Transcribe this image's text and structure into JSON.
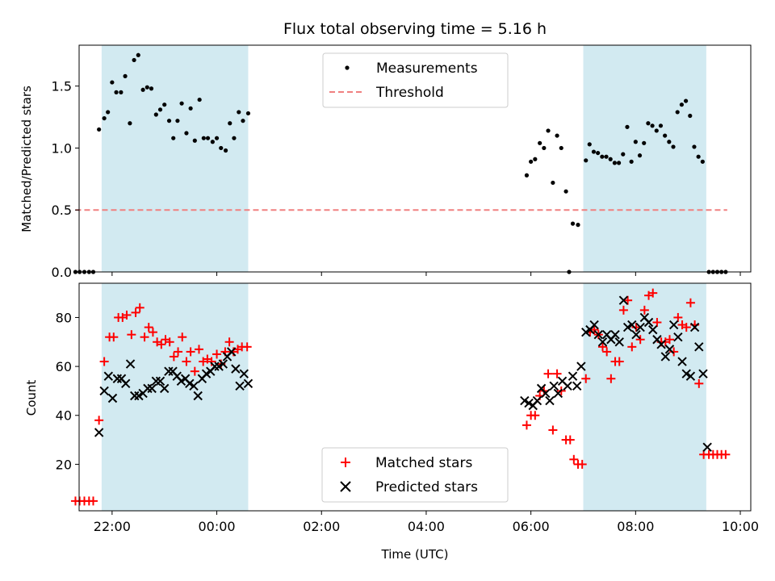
{
  "title": "Flux total observing time = 5.16 h",
  "colors": {
    "shade": "#add8e6",
    "measurement": "#000000",
    "threshold": "#f08080",
    "matched": "#ff0000",
    "predicted": "#000000"
  },
  "chart_data": [
    {
      "type": "scatter",
      "title": "Flux total observing time = 5.16 h",
      "xlabel": "",
      "ylabel": "Matched/Predicted stars",
      "x_unit": "hours relative to 00:00 UTC",
      "xlim": [
        -2.63,
        10.2
      ],
      "ylim": [
        0,
        1.83
      ],
      "yticks": [
        0.0,
        0.5,
        1.0,
        1.5
      ],
      "ytick_labels": [
        "0.0",
        "0.5",
        "1.0",
        "1.5"
      ],
      "shaded_intervals": [
        [
          -2.2,
          0.6
        ],
        [
          7.0,
          9.35
        ]
      ],
      "legend": {
        "placement": "top-center",
        "entries": [
          "Measurements",
          "Threshold"
        ]
      },
      "threshold": {
        "name": "Threshold",
        "y": 0.5,
        "x": [
          -2.7,
          9.75
        ]
      },
      "series": [
        {
          "name": "Measurements",
          "marker": "dot",
          "points": [
            [
              -2.7,
              0.0
            ],
            [
              -2.62,
              0.0
            ],
            [
              -2.53,
              0.0
            ],
            [
              -2.44,
              0.0
            ],
            [
              -2.36,
              0.0
            ],
            [
              -2.25,
              1.15
            ],
            [
              -2.15,
              1.24
            ],
            [
              -2.08,
              1.29
            ],
            [
              -2.0,
              1.53
            ],
            [
              -1.92,
              1.45
            ],
            [
              -1.83,
              1.45
            ],
            [
              -1.75,
              1.58
            ],
            [
              -1.66,
              1.2
            ],
            [
              -1.58,
              1.71
            ],
            [
              -1.5,
              1.75
            ],
            [
              -1.41,
              1.47
            ],
            [
              -1.33,
              1.49
            ],
            [
              -1.25,
              1.48
            ],
            [
              -1.16,
              1.27
            ],
            [
              -1.08,
              1.31
            ],
            [
              -1.0,
              1.35
            ],
            [
              -0.91,
              1.22
            ],
            [
              -0.83,
              1.08
            ],
            [
              -0.75,
              1.22
            ],
            [
              -0.67,
              1.36
            ],
            [
              -0.58,
              1.12
            ],
            [
              -0.5,
              1.32
            ],
            [
              -0.42,
              1.06
            ],
            [
              -0.33,
              1.39
            ],
            [
              -0.25,
              1.08
            ],
            [
              -0.17,
              1.08
            ],
            [
              -0.08,
              1.05
            ],
            [
              0.0,
              1.08
            ],
            [
              0.08,
              1.0
            ],
            [
              0.17,
              0.98
            ],
            [
              0.25,
              1.2
            ],
            [
              0.33,
              1.08
            ],
            [
              0.42,
              1.29
            ],
            [
              0.5,
              1.22
            ],
            [
              0.6,
              1.28
            ],
            [
              5.92,
              0.78
            ],
            [
              6.0,
              0.89
            ],
            [
              6.08,
              0.91
            ],
            [
              6.17,
              1.04
            ],
            [
              6.25,
              1.0
            ],
            [
              6.33,
              1.14
            ],
            [
              6.42,
              0.72
            ],
            [
              6.5,
              1.1
            ],
            [
              6.58,
              1.0
            ],
            [
              6.67,
              0.65
            ],
            [
              6.73,
              0.0
            ],
            [
              6.8,
              0.39
            ],
            [
              6.9,
              0.38
            ],
            [
              7.05,
              0.9
            ],
            [
              7.12,
              1.03
            ],
            [
              7.2,
              0.97
            ],
            [
              7.28,
              0.96
            ],
            [
              7.36,
              0.93
            ],
            [
              7.44,
              0.93
            ],
            [
              7.52,
              0.91
            ],
            [
              7.6,
              0.88
            ],
            [
              7.68,
              0.88
            ],
            [
              7.76,
              0.95
            ],
            [
              7.84,
              1.17
            ],
            [
              7.92,
              0.89
            ],
            [
              8.0,
              1.05
            ],
            [
              8.08,
              0.94
            ],
            [
              8.16,
              1.04
            ],
            [
              8.24,
              1.2
            ],
            [
              8.32,
              1.18
            ],
            [
              8.4,
              1.14
            ],
            [
              8.48,
              1.18
            ],
            [
              8.56,
              1.1
            ],
            [
              8.64,
              1.05
            ],
            [
              8.72,
              1.01
            ],
            [
              8.8,
              1.29
            ],
            [
              8.88,
              1.35
            ],
            [
              8.96,
              1.38
            ],
            [
              9.04,
              1.26
            ],
            [
              9.12,
              1.01
            ],
            [
              9.2,
              0.93
            ],
            [
              9.28,
              0.89
            ],
            [
              9.4,
              0.0
            ],
            [
              9.48,
              0.0
            ],
            [
              9.56,
              0.0
            ],
            [
              9.64,
              0.0
            ],
            [
              9.72,
              0.0
            ]
          ]
        }
      ]
    },
    {
      "type": "scatter",
      "title": "",
      "xlabel": "Time (UTC)",
      "ylabel": "Count",
      "x_unit": "hours relative to 00:00 UTC",
      "xlim": [
        -2.63,
        10.2
      ],
      "ylim": [
        1,
        94
      ],
      "xticks": [
        -2,
        0,
        2,
        4,
        6,
        8,
        10
      ],
      "xtick_labels": [
        "22:00",
        "00:00",
        "02:00",
        "04:00",
        "06:00",
        "08:00",
        "10:00"
      ],
      "yticks": [
        20,
        40,
        60,
        80
      ],
      "ytick_labels": [
        "20",
        "40",
        "60",
        "80"
      ],
      "shaded_intervals": [
        [
          -2.2,
          0.6
        ],
        [
          7.0,
          9.35
        ]
      ],
      "legend": {
        "placement": "bottom-center",
        "entries": [
          "Matched stars",
          "Predicted stars"
        ]
      },
      "series": [
        {
          "name": "Matched stars",
          "marker": "plus",
          "points": [
            [
              -2.7,
              5
            ],
            [
              -2.62,
              5
            ],
            [
              -2.53,
              5
            ],
            [
              -2.44,
              5
            ],
            [
              -2.36,
              5
            ],
            [
              -2.25,
              38
            ],
            [
              -2.15,
              62
            ],
            [
              -2.05,
              72
            ],
            [
              -1.97,
              72
            ],
            [
              -1.88,
              80
            ],
            [
              -1.8,
              80
            ],
            [
              -1.72,
              81
            ],
            [
              -1.63,
              73
            ],
            [
              -1.55,
              82
            ],
            [
              -1.47,
              84
            ],
            [
              -1.38,
              72
            ],
            [
              -1.3,
              76
            ],
            [
              -1.22,
              74
            ],
            [
              -1.14,
              70
            ],
            [
              -1.06,
              69
            ],
            [
              -0.98,
              71
            ],
            [
              -0.9,
              70
            ],
            [
              -0.82,
              64
            ],
            [
              -0.74,
              66
            ],
            [
              -0.66,
              72
            ],
            [
              -0.58,
              62
            ],
            [
              -0.5,
              66
            ],
            [
              -0.42,
              58
            ],
            [
              -0.34,
              67
            ],
            [
              -0.26,
              62
            ],
            [
              -0.18,
              63
            ],
            [
              -0.1,
              62
            ],
            [
              0.0,
              65
            ],
            [
              0.08,
              61
            ],
            [
              0.16,
              66
            ],
            [
              0.24,
              70
            ],
            [
              0.32,
              66
            ],
            [
              0.4,
              67
            ],
            [
              0.48,
              68
            ],
            [
              0.58,
              68
            ],
            [
              5.92,
              36
            ],
            [
              6.0,
              40
            ],
            [
              6.08,
              40
            ],
            [
              6.17,
              48
            ],
            [
              6.25,
              50
            ],
            [
              6.33,
              57
            ],
            [
              6.42,
              34
            ],
            [
              6.5,
              57
            ],
            [
              6.58,
              50
            ],
            [
              6.67,
              30
            ],
            [
              6.75,
              30
            ],
            [
              6.82,
              22
            ],
            [
              6.9,
              20
            ],
            [
              6.98,
              20
            ],
            [
              7.05,
              55
            ],
            [
              7.13,
              74
            ],
            [
              7.21,
              75
            ],
            [
              7.29,
              73
            ],
            [
              7.37,
              68
            ],
            [
              7.45,
              66
            ],
            [
              7.53,
              55
            ],
            [
              7.61,
              62
            ],
            [
              7.69,
              62
            ],
            [
              7.77,
              83
            ],
            [
              7.85,
              87
            ],
            [
              7.93,
              68
            ],
            [
              8.01,
              76
            ],
            [
              8.09,
              71
            ],
            [
              8.17,
              83
            ],
            [
              8.25,
              89
            ],
            [
              8.33,
              90
            ],
            [
              8.41,
              78
            ],
            [
              8.49,
              70
            ],
            [
              8.57,
              70
            ],
            [
              8.65,
              71
            ],
            [
              8.73,
              66
            ],
            [
              8.81,
              80
            ],
            [
              8.89,
              77
            ],
            [
              8.97,
              76
            ],
            [
              9.05,
              86
            ],
            [
              9.13,
              77
            ],
            [
              9.21,
              53
            ],
            [
              9.3,
              24
            ],
            [
              9.4,
              24
            ],
            [
              9.48,
              24
            ],
            [
              9.56,
              24
            ],
            [
              9.64,
              24
            ],
            [
              9.72,
              24
            ]
          ]
        },
        {
          "name": "Predicted stars",
          "marker": "cross",
          "points": [
            [
              -2.25,
              33
            ],
            [
              -2.15,
              50
            ],
            [
              -2.07,
              56
            ],
            [
              -1.99,
              47
            ],
            [
              -1.9,
              55
            ],
            [
              -1.82,
              55
            ],
            [
              -1.74,
              53
            ],
            [
              -1.65,
              61
            ],
            [
              -1.57,
              48
            ],
            [
              -1.49,
              48
            ],
            [
              -1.41,
              49
            ],
            [
              -1.32,
              51
            ],
            [
              -1.24,
              51
            ],
            [
              -1.16,
              54
            ],
            [
              -1.08,
              54
            ],
            [
              -1.0,
              51
            ],
            [
              -0.92,
              58
            ],
            [
              -0.84,
              58
            ],
            [
              -0.76,
              56
            ],
            [
              -0.68,
              54
            ],
            [
              -0.6,
              55
            ],
            [
              -0.52,
              53
            ],
            [
              -0.44,
              52
            ],
            [
              -0.36,
              48
            ],
            [
              -0.28,
              55
            ],
            [
              -0.2,
              57
            ],
            [
              -0.12,
              58
            ],
            [
              -0.04,
              60
            ],
            [
              0.04,
              60
            ],
            [
              0.12,
              61
            ],
            [
              0.2,
              64
            ],
            [
              0.28,
              66
            ],
            [
              0.36,
              59
            ],
            [
              0.44,
              52
            ],
            [
              0.52,
              57
            ],
            [
              0.6,
              53
            ],
            [
              5.88,
              46
            ],
            [
              5.96,
              45
            ],
            [
              6.04,
              44
            ],
            [
              6.12,
              46
            ],
            [
              6.2,
              51
            ],
            [
              6.28,
              49
            ],
            [
              6.36,
              46
            ],
            [
              6.44,
              52
            ],
            [
              6.52,
              49
            ],
            [
              6.6,
              54
            ],
            [
              6.7,
              52
            ],
            [
              6.8,
              56
            ],
            [
              6.88,
              52
            ],
            [
              6.96,
              60
            ],
            [
              7.05,
              74
            ],
            [
              7.13,
              75
            ],
            [
              7.21,
              77
            ],
            [
              7.29,
              73
            ],
            [
              7.37,
              70
            ],
            [
              7.45,
              73
            ],
            [
              7.53,
              71
            ],
            [
              7.61,
              73
            ],
            [
              7.69,
              70
            ],
            [
              7.77,
              87
            ],
            [
              7.85,
              76
            ],
            [
              7.93,
              77
            ],
            [
              8.01,
              73
            ],
            [
              8.09,
              76
            ],
            [
              8.17,
              80
            ],
            [
              8.25,
              78
            ],
            [
              8.33,
              75
            ],
            [
              8.41,
              71
            ],
            [
              8.49,
              69
            ],
            [
              8.57,
              64
            ],
            [
              8.65,
              67
            ],
            [
              8.73,
              77
            ],
            [
              8.81,
              72
            ],
            [
              8.89,
              62
            ],
            [
              8.97,
              57
            ],
            [
              9.05,
              56
            ],
            [
              9.13,
              76
            ],
            [
              9.21,
              68
            ],
            [
              9.29,
              57
            ],
            [
              9.37,
              27
            ]
          ]
        }
      ]
    }
  ]
}
